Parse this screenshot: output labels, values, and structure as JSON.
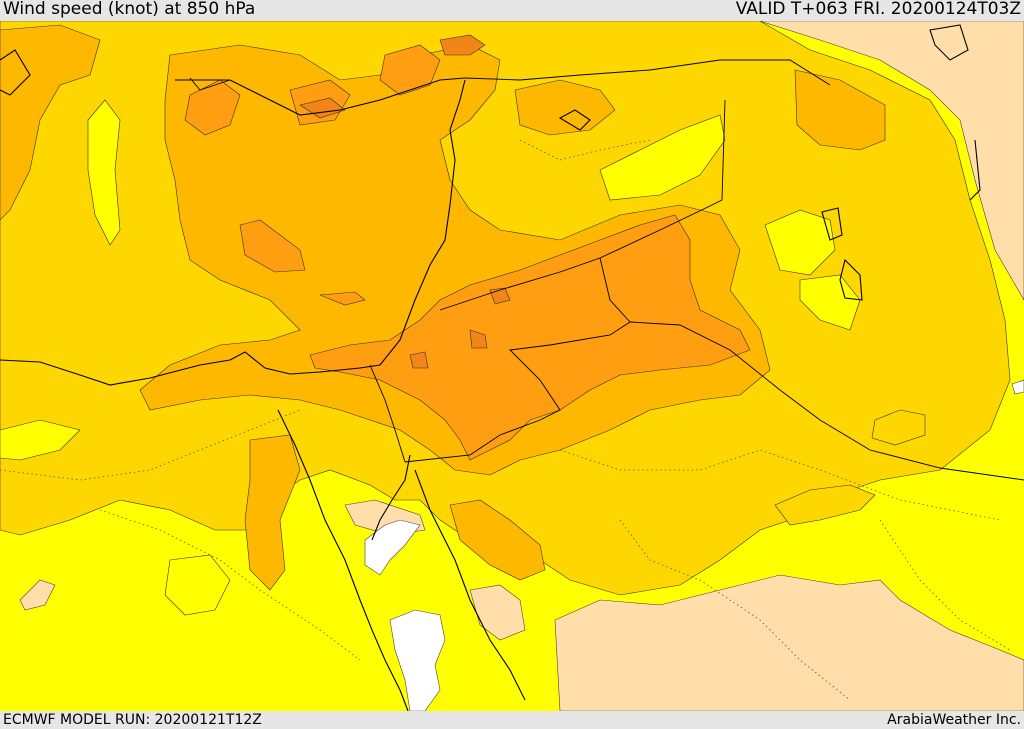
{
  "header": {
    "title": "Wind speed (knot) at 850 hPa",
    "valid_time": "VALID T+063 FRI. 20200124T03Z"
  },
  "footer": {
    "model_run": "ECMWF MODEL RUN: 20200121T12Z",
    "credit": "ArabiaWeather Inc."
  },
  "map": {
    "field": "wind speed 850 hPa",
    "colors": {
      "calm": "#ffffff",
      "light": "#ffdeaa",
      "level_1": "#ffff00",
      "level_2": "#ffd700",
      "level_3": "#ffb800",
      "level_4": "#ff9e10",
      "level_5": "#f28518"
    }
  }
}
